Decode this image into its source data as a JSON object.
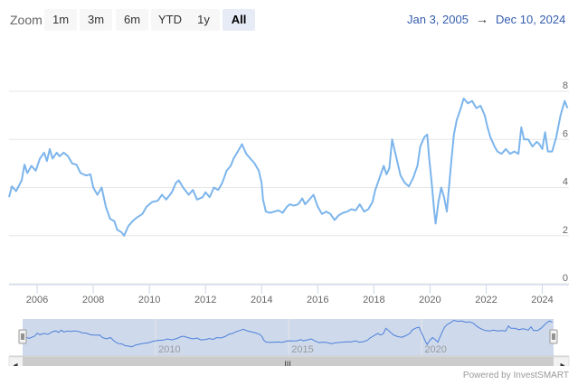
{
  "toolbar": {
    "zoom_label": "Zoom",
    "buttons": [
      {
        "label": "1m"
      },
      {
        "label": "3m"
      },
      {
        "label": "6m"
      },
      {
        "label": "YTD"
      },
      {
        "label": "1y"
      },
      {
        "label": "All",
        "active": true
      }
    ],
    "range_from": "Jan 3, 2005",
    "range_arrow": "→",
    "range_to": "Dec 10, 2024"
  },
  "credit": "Powered by InvestSMART",
  "colors": {
    "line": "#7cb5ec",
    "navigator_fill": "#c9d6ea",
    "grid": "#e6e6e6"
  },
  "chart_data": {
    "type": "line",
    "title": "",
    "xlabel": "",
    "ylabel": "",
    "xlim": [
      2005.0,
      2024.95
    ],
    "ylim": [
      0,
      8
    ],
    "yticks": [
      0,
      2,
      4,
      6,
      8
    ],
    "xticks": [
      2006,
      2008,
      2010,
      2012,
      2014,
      2016,
      2018,
      2020,
      2022,
      2024
    ],
    "grid": "horizontal",
    "series": [
      {
        "name": "",
        "points": [
          [
            2005.0,
            3.6
          ],
          [
            2005.1,
            4.05
          ],
          [
            2005.25,
            3.85
          ],
          [
            2005.45,
            4.3
          ],
          [
            2005.55,
            4.95
          ],
          [
            2005.65,
            4.6
          ],
          [
            2005.8,
            4.9
          ],
          [
            2005.95,
            4.7
          ],
          [
            2006.1,
            5.2
          ],
          [
            2006.25,
            5.45
          ],
          [
            2006.35,
            5.1
          ],
          [
            2006.45,
            5.6
          ],
          [
            2006.55,
            5.2
          ],
          [
            2006.7,
            5.45
          ],
          [
            2006.8,
            5.3
          ],
          [
            2006.95,
            5.45
          ],
          [
            2007.1,
            5.3
          ],
          [
            2007.25,
            5.0
          ],
          [
            2007.4,
            4.95
          ],
          [
            2007.55,
            4.6
          ],
          [
            2007.75,
            4.5
          ],
          [
            2007.9,
            4.55
          ],
          [
            2008.0,
            4.0
          ],
          [
            2008.15,
            3.7
          ],
          [
            2008.3,
            4.0
          ],
          [
            2008.45,
            3.2
          ],
          [
            2008.6,
            2.7
          ],
          [
            2008.75,
            2.6
          ],
          [
            2008.85,
            2.25
          ],
          [
            2009.0,
            2.15
          ],
          [
            2009.1,
            2.0
          ],
          [
            2009.25,
            2.4
          ],
          [
            2009.4,
            2.6
          ],
          [
            2009.55,
            2.75
          ],
          [
            2009.75,
            2.9
          ],
          [
            2009.9,
            3.2
          ],
          [
            2010.1,
            3.4
          ],
          [
            2010.3,
            3.45
          ],
          [
            2010.45,
            3.7
          ],
          [
            2010.6,
            3.5
          ],
          [
            2010.8,
            3.8
          ],
          [
            2010.95,
            4.2
          ],
          [
            2011.05,
            4.3
          ],
          [
            2011.2,
            4.0
          ],
          [
            2011.4,
            3.7
          ],
          [
            2011.55,
            3.9
          ],
          [
            2011.7,
            3.5
          ],
          [
            2011.9,
            3.6
          ],
          [
            2012.0,
            3.8
          ],
          [
            2012.15,
            3.6
          ],
          [
            2012.3,
            4.0
          ],
          [
            2012.45,
            3.9
          ],
          [
            2012.6,
            4.2
          ],
          [
            2012.75,
            4.7
          ],
          [
            2012.9,
            4.9
          ],
          [
            2013.0,
            5.2
          ],
          [
            2013.15,
            5.5
          ],
          [
            2013.3,
            5.8
          ],
          [
            2013.45,
            5.4
          ],
          [
            2013.6,
            5.2
          ],
          [
            2013.75,
            5.0
          ],
          [
            2013.9,
            4.7
          ],
          [
            2014.0,
            4.2
          ],
          [
            2014.05,
            3.5
          ],
          [
            2014.15,
            3.0
          ],
          [
            2014.3,
            2.95
          ],
          [
            2014.45,
            3.0
          ],
          [
            2014.6,
            3.05
          ],
          [
            2014.75,
            2.95
          ],
          [
            2014.9,
            3.2
          ],
          [
            2015.0,
            3.3
          ],
          [
            2015.15,
            3.25
          ],
          [
            2015.3,
            3.3
          ],
          [
            2015.45,
            3.55
          ],
          [
            2015.55,
            3.3
          ],
          [
            2015.7,
            3.5
          ],
          [
            2015.85,
            3.7
          ],
          [
            2016.0,
            3.2
          ],
          [
            2016.15,
            2.9
          ],
          [
            2016.3,
            3.0
          ],
          [
            2016.45,
            2.9
          ],
          [
            2016.6,
            2.65
          ],
          [
            2016.75,
            2.85
          ],
          [
            2016.9,
            2.95
          ],
          [
            2017.05,
            3.0
          ],
          [
            2017.2,
            3.1
          ],
          [
            2017.35,
            3.05
          ],
          [
            2017.5,
            3.3
          ],
          [
            2017.65,
            3.0
          ],
          [
            2017.8,
            3.1
          ],
          [
            2017.95,
            3.4
          ],
          [
            2018.05,
            3.9
          ],
          [
            2018.2,
            4.4
          ],
          [
            2018.35,
            4.9
          ],
          [
            2018.45,
            4.55
          ],
          [
            2018.55,
            4.8
          ],
          [
            2018.65,
            6.0
          ],
          [
            2018.75,
            5.5
          ],
          [
            2018.85,
            5.0
          ],
          [
            2018.95,
            4.5
          ],
          [
            2019.1,
            4.2
          ],
          [
            2019.25,
            4.05
          ],
          [
            2019.4,
            4.4
          ],
          [
            2019.55,
            4.9
          ],
          [
            2019.65,
            5.7
          ],
          [
            2019.8,
            6.1
          ],
          [
            2019.9,
            6.2
          ],
          [
            2019.97,
            5.2
          ],
          [
            2020.05,
            4.3
          ],
          [
            2020.15,
            3.0
          ],
          [
            2020.2,
            2.5
          ],
          [
            2020.3,
            3.4
          ],
          [
            2020.4,
            4.0
          ],
          [
            2020.5,
            3.6
          ],
          [
            2020.6,
            3.0
          ],
          [
            2020.75,
            5.0
          ],
          [
            2020.85,
            6.2
          ],
          [
            2020.95,
            6.8
          ],
          [
            2021.1,
            7.3
          ],
          [
            2021.2,
            7.7
          ],
          [
            2021.35,
            7.5
          ],
          [
            2021.5,
            7.6
          ],
          [
            2021.65,
            7.3
          ],
          [
            2021.8,
            7.4
          ],
          [
            2021.95,
            7.0
          ],
          [
            2022.05,
            6.5
          ],
          [
            2022.15,
            6.1
          ],
          [
            2022.3,
            5.7
          ],
          [
            2022.4,
            5.5
          ],
          [
            2022.55,
            5.4
          ],
          [
            2022.7,
            5.6
          ],
          [
            2022.85,
            5.4
          ],
          [
            2023.0,
            5.5
          ],
          [
            2023.15,
            5.4
          ],
          [
            2023.25,
            6.5
          ],
          [
            2023.35,
            6.0
          ],
          [
            2023.5,
            6.0
          ],
          [
            2023.65,
            5.7
          ],
          [
            2023.8,
            5.9
          ],
          [
            2023.9,
            5.8
          ],
          [
            2024.0,
            5.6
          ],
          [
            2024.1,
            6.3
          ],
          [
            2024.2,
            5.5
          ],
          [
            2024.35,
            5.5
          ],
          [
            2024.5,
            6.1
          ],
          [
            2024.65,
            7.0
          ],
          [
            2024.8,
            7.6
          ],
          [
            2024.9,
            7.3
          ]
        ]
      }
    ]
  },
  "navigator": {
    "tick_labels": [
      "2010",
      "2015",
      "2020"
    ],
    "tick_years": [
      2010,
      2015,
      2020
    ],
    "scroll_left_glyph": "◂",
    "scroll_right_glyph": "▸",
    "grip_glyph": "III"
  }
}
